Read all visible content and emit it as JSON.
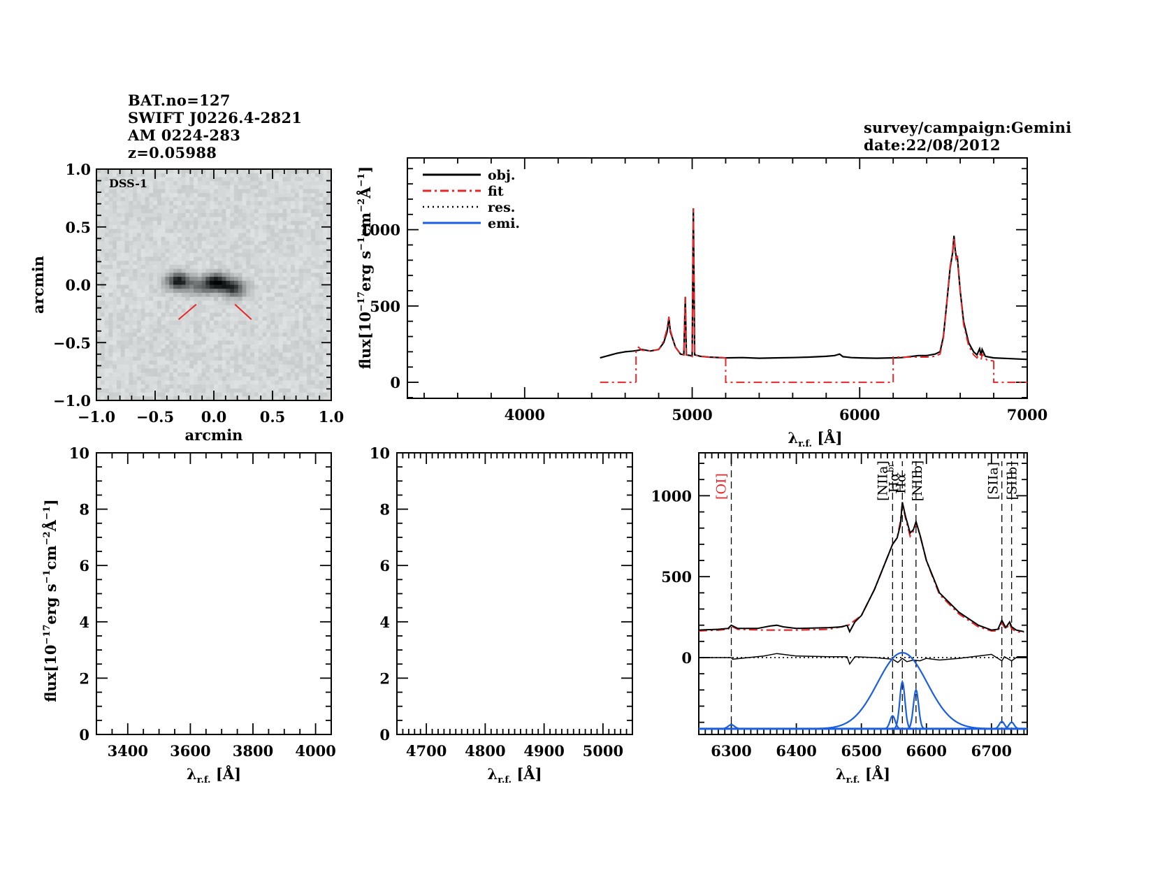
{
  "header": {
    "left_lines": [
      "BAT.no=127",
      "SWIFT J0226.4-2821",
      "AM 0224-283",
      "z=0.05988"
    ],
    "right_lines": [
      "survey/campaign:Gemini",
      "date:22/08/2012"
    ]
  },
  "colors": {
    "obj": "#000000",
    "fit": "#e8262a",
    "res": "#000000",
    "emi": "#1a5fe0",
    "oi_label": "#e8262a",
    "image_bg": "#d4d8d8"
  },
  "chart_data": [
    {
      "id": "image",
      "type": "heatmap",
      "title": "DSS-1",
      "xlabel": "arcmin",
      "ylabel": "arcmin",
      "xlim": [
        -1.0,
        1.0
      ],
      "ylim": [
        -1.0,
        1.0
      ],
      "xticks": [
        "-1.0",
        "-0.5",
        "0.0",
        "0.5",
        "1.0"
      ],
      "yticks": [
        "-1.0",
        "-0.5",
        "0.0",
        "0.5",
        "1.0"
      ],
      "sources": [
        {
          "x": -0.3,
          "y": 0.03,
          "intensity": 0.9
        },
        {
          "x": 0.02,
          "y": 0.02,
          "intensity": 1.0
        },
        {
          "x": 0.17,
          "y": -0.03,
          "intensity": 0.75
        },
        {
          "x": -0.12,
          "y": -0.02,
          "intensity": 0.4
        }
      ],
      "markers": [
        {
          "x1": -0.15,
          "y1": -0.17,
          "x2": -0.3,
          "y2": -0.3
        },
        {
          "x1": 0.18,
          "y1": -0.17,
          "x2": 0.32,
          "y2": -0.3
        }
      ]
    },
    {
      "id": "full-spectrum",
      "type": "line",
      "xlabel": "λr.f. [Å]",
      "ylabel": "flux[10^-17 erg s^-1 cm^-2 Å^-1]",
      "xlim": [
        3300,
        7000
      ],
      "ylim": [
        -105,
        1470
      ],
      "xticks": [
        4000,
        5000,
        6000,
        7000
      ],
      "yticks": [
        0,
        500,
        1000
      ],
      "legend": {
        "position": "top-left",
        "entries": [
          "obj.",
          "fit",
          "res.",
          "emi."
        ]
      },
      "series": [
        {
          "name": "obj.",
          "style": "solid",
          "x": [
            4450,
            4500,
            4550,
            4600,
            4650,
            4680,
            4700,
            4750,
            4800,
            4830,
            4850,
            4861,
            4870,
            4900,
            4930,
            4950,
            4959,
            4965,
            4990,
            5000,
            5007,
            5015,
            5050,
            5100,
            5200,
            5300,
            5400,
            5500,
            5600,
            5700,
            5800,
            5850,
            5880,
            5900,
            5950,
            6000,
            6100,
            6200,
            6250,
            6300,
            6350,
            6400,
            6450,
            6480,
            6500,
            6520,
            6540,
            6555,
            6563,
            6570,
            6575,
            6583,
            6600,
            6620,
            6650,
            6680,
            6700,
            6716,
            6725,
            6731,
            6750,
            6800,
            6900,
            7000
          ],
          "y": [
            160,
            175,
            190,
            200,
            205,
            210,
            215,
            205,
            215,
            260,
            330,
            420,
            330,
            230,
            185,
            180,
            560,
            180,
            175,
            170,
            1140,
            180,
            170,
            165,
            160,
            162,
            158,
            160,
            162,
            165,
            170,
            175,
            185,
            168,
            162,
            160,
            158,
            160,
            162,
            168,
            175,
            175,
            185,
            200,
            300,
            520,
            750,
            850,
            960,
            870,
            830,
            820,
            600,
            400,
            260,
            200,
            180,
            220,
            175,
            215,
            170,
            160,
            155,
            150
          ]
        },
        {
          "name": "fit",
          "style": "dash-dot",
          "segments": [
            {
              "x": [
                4450,
                4665
              ],
              "y": [
                0,
                0
              ]
            },
            {
              "x": [
                4665,
                4665,
                4680,
                4700,
                4750,
                4800,
                4830,
                4850,
                4861,
                4870,
                4900,
                4930,
                4950,
                4959,
                4965,
                4990,
                5000,
                5007,
                5015,
                5050,
                5100,
                5200
              ],
              "y": [
                0,
                205,
                230,
                210,
                205,
                215,
                270,
                350,
                430,
                340,
                230,
                185,
                180,
                560,
                180,
                175,
                170,
                1140,
                180,
                170,
                165,
                160
              ]
            },
            {
              "x": [
                5200,
                5200,
                6200
              ],
              "y": [
                160,
                0,
                0
              ]
            },
            {
              "x": [
                6200,
                6200,
                6300,
                6400,
                6450,
                6480,
                6500,
                6520,
                6540,
                6555,
                6563,
                6570,
                6575,
                6583,
                6600,
                6620,
                6650,
                6680,
                6700,
                6716,
                6725,
                6731,
                6760,
                6800
              ],
              "y": [
                0,
                165,
                165,
                165,
                170,
                185,
                290,
                520,
                760,
                860,
                950,
                860,
                810,
                830,
                600,
                380,
                240,
                180,
                160,
                190,
                150,
                185,
                145,
                140
              ]
            },
            {
              "x": [
                6800,
                6800,
                7000
              ],
              "y": [
                140,
                0,
                0
              ]
            }
          ]
        }
      ]
    },
    {
      "id": "hbeta-zoom",
      "type": "line",
      "xlabel": "λr.f. [Å]",
      "ylabel": "flux[10^-17 erg s^-1 cm^-2 Å^-1]",
      "xlim": [
        3300,
        4050
      ],
      "ylim": [
        0,
        10
      ],
      "xticks": [
        3400,
        3600,
        3800,
        4000
      ],
      "yticks": [
        0,
        2,
        4,
        6,
        8,
        10
      ],
      "series": []
    },
    {
      "id": "oiii-zoom",
      "type": "line",
      "xlabel": "λr.f. [Å]",
      "ylabel": "",
      "xlim": [
        4650,
        5050
      ],
      "ylim": [
        0,
        10
      ],
      "xticks": [
        4700,
        4800,
        4900,
        5000
      ],
      "yticks": [
        0,
        2,
        4,
        6,
        8,
        10
      ],
      "series": []
    },
    {
      "id": "halpha-zoom",
      "type": "line",
      "xlabel": "λr.f. [Å]",
      "ylabel": "",
      "xlim": [
        6250,
        6755
      ],
      "ylim": [
        -475,
        1265
      ],
      "xticks": [
        6300,
        6400,
        6500,
        6600,
        6700
      ],
      "yticks": [
        0,
        500,
        1000
      ],
      "line_markers": [
        {
          "label": "[OI]",
          "x": 6300,
          "color": "red"
        },
        {
          "label": "[NIIa]",
          "x": 6548
        },
        {
          "label": "Hα",
          "x": 6563
        },
        {
          "label": "Hαbr",
          "x": 6563
        },
        {
          "label": "[NIIb]",
          "x": 6584
        },
        {
          "label": "[SIIa]",
          "x": 6716
        },
        {
          "label": "[SIIb]",
          "x": 6731
        }
      ],
      "series": [
        {
          "name": "obj.",
          "style": "solid",
          "x": [
            6250,
            6280,
            6295,
            6300,
            6310,
            6340,
            6360,
            6370,
            6380,
            6400,
            6450,
            6470,
            6478,
            6482,
            6490,
            6500,
            6520,
            6540,
            6548,
            6555,
            6560,
            6563,
            6568,
            6575,
            6580,
            6584,
            6590,
            6600,
            6620,
            6650,
            6680,
            6700,
            6710,
            6716,
            6722,
            6728,
            6731,
            6738,
            6750
          ],
          "y": [
            170,
            175,
            180,
            200,
            180,
            180,
            195,
            200,
            190,
            180,
            185,
            190,
            200,
            160,
            220,
            260,
            420,
            620,
            700,
            740,
            820,
            960,
            870,
            770,
            790,
            840,
            760,
            600,
            400,
            280,
            200,
            170,
            175,
            230,
            185,
            220,
            190,
            170,
            160
          ]
        },
        {
          "name": "fit",
          "style": "dash-dot",
          "x": [
            6250,
            6280,
            6295,
            6300,
            6310,
            6350,
            6400,
            6450,
            6480,
            6500,
            6520,
            6540,
            6548,
            6555,
            6560,
            6563,
            6568,
            6575,
            6580,
            6584,
            6590,
            6600,
            6620,
            6650,
            6680,
            6700,
            6710,
            6716,
            6722,
            6728,
            6731,
            6738,
            6750
          ],
          "y": [
            165,
            170,
            175,
            195,
            175,
            170,
            170,
            175,
            200,
            260,
            420,
            620,
            700,
            740,
            840,
            950,
            860,
            750,
            780,
            830,
            760,
            600,
            390,
            270,
            190,
            165,
            165,
            215,
            175,
            210,
            180,
            160,
            155
          ]
        },
        {
          "name": "res.",
          "style": "solid-thin",
          "x": [
            6250,
            6300,
            6302,
            6350,
            6370,
            6400,
            6450,
            6478,
            6482,
            6490,
            6520,
            6548,
            6556,
            6563,
            6570,
            6580,
            6590,
            6600,
            6620,
            6650,
            6680,
            6700,
            6716,
            6720,
            6731,
            6740,
            6755
          ],
          "y": [
            0,
            0,
            -10,
            10,
            25,
            10,
            5,
            5,
            -40,
            5,
            0,
            -10,
            -30,
            -5,
            -25,
            -15,
            -20,
            -5,
            -15,
            -5,
            10,
            20,
            -20,
            5,
            -20,
            5,
            5
          ]
        },
        {
          "name": "emi.",
          "style": "solid",
          "components": [
            {
              "center": 6300,
              "amp": 25,
              "sigma": 5
            },
            {
              "center": 6563,
              "amp": 470,
              "sigma": 38,
              "label": "broad Hα"
            },
            {
              "center": 6548,
              "amp": 80,
              "sigma": 4
            },
            {
              "center": 6563,
              "amp": 290,
              "sigma": 4
            },
            {
              "center": 6584,
              "amp": 240,
              "sigma": 4
            },
            {
              "center": 6716,
              "amp": 45,
              "sigma": 4
            },
            {
              "center": 6731,
              "amp": 40,
              "sigma": 4
            }
          ],
          "baseline": -440
        }
      ]
    }
  ],
  "image_label": "DSS-1"
}
